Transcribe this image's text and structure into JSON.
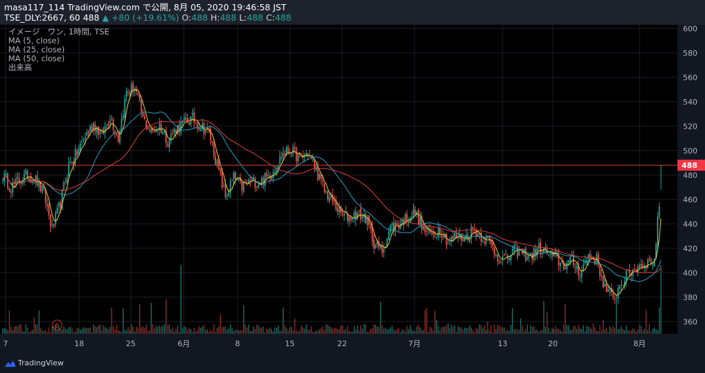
{
  "header": {
    "line1": "masa117_114 TradingView.com で公開, 8月 05, 2020 19:46:58 JST",
    "symbol": "TSE_DLY:2667, 60",
    "last": "488",
    "change_arrow": "▲",
    "change": "+80 (+19.61%)",
    "o_label": "O:",
    "o": "488",
    "h_label": "H:",
    "h": "488",
    "l_label": "L:",
    "l": "488",
    "c_label": "C:",
    "c": "488"
  },
  "legend": [
    "イメージ　ワン, 1時間, TSE",
    "MA (5, close)",
    "MA (25, close)",
    "MA (50, close)",
    "出来高"
  ],
  "footer": {
    "brand": "TradingView"
  },
  "colors": {
    "background": "#000000",
    "chrome": "#131722",
    "up": "#26a69a",
    "down": "#ef5350",
    "ma5": "#f0d432",
    "ma25": "#21a4c7",
    "ma50": "#e3413f",
    "price_line": "#e3413f",
    "price_label_bg": "#f23645"
  },
  "chart_data": {
    "type": "candlestick",
    "title": "イメージ　ワン, 1時間, TSE",
    "ylim": [
      350,
      603
    ],
    "y_ticks": [
      360,
      380,
      400,
      420,
      440,
      460,
      480,
      500,
      520,
      540,
      560,
      580,
      600
    ],
    "last_price": 488,
    "x_tick_labels": [
      "7",
      "18",
      "25",
      "6月",
      "8",
      "15",
      "22",
      "7月",
      "13",
      "20",
      "8月"
    ],
    "event_marker": "E",
    "approx_close_path": [
      [
        0,
        480
      ],
      [
        5,
        470
      ],
      [
        10,
        475
      ],
      [
        15,
        480
      ],
      [
        20,
        476
      ],
      [
        25,
        465
      ],
      [
        30,
        435
      ],
      [
        35,
        458
      ],
      [
        40,
        488
      ],
      [
        45,
        498
      ],
      [
        50,
        512
      ],
      [
        55,
        522
      ],
      [
        60,
        512
      ],
      [
        65,
        528
      ],
      [
        70,
        510
      ],
      [
        75,
        548
      ],
      [
        80,
        552
      ],
      [
        85,
        526
      ],
      [
        90,
        515
      ],
      [
        95,
        521
      ],
      [
        100,
        508
      ],
      [
        105,
        518
      ],
      [
        110,
        523
      ],
      [
        115,
        526
      ],
      [
        120,
        520
      ],
      [
        125,
        515
      ],
      [
        130,
        488
      ],
      [
        135,
        462
      ],
      [
        140,
        478
      ],
      [
        145,
        470
      ],
      [
        150,
        475
      ],
      [
        155,
        474
      ],
      [
        160,
        478
      ],
      [
        165,
        486
      ],
      [
        170,
        498
      ],
      [
        175,
        500
      ],
      [
        180,
        493
      ],
      [
        185,
        498
      ],
      [
        190,
        484
      ],
      [
        195,
        467
      ],
      [
        200,
        458
      ],
      [
        205,
        448
      ],
      [
        210,
        445
      ],
      [
        215,
        448
      ],
      [
        220,
        445
      ],
      [
        225,
        425
      ],
      [
        230,
        418
      ],
      [
        235,
        437
      ],
      [
        240,
        440
      ],
      [
        245,
        445
      ],
      [
        250,
        450
      ],
      [
        255,
        435
      ],
      [
        260,
        431
      ],
      [
        265,
        436
      ],
      [
        270,
        425
      ],
      [
        275,
        430
      ],
      [
        280,
        428
      ],
      [
        285,
        436
      ],
      [
        290,
        430
      ],
      [
        295,
        425
      ],
      [
        300,
        413
      ],
      [
        305,
        411
      ],
      [
        310,
        418
      ],
      [
        315,
        416
      ],
      [
        320,
        413
      ],
      [
        325,
        420
      ],
      [
        330,
        416
      ],
      [
        335,
        412
      ],
      [
        340,
        406
      ],
      [
        345,
        410
      ],
      [
        350,
        400
      ],
      [
        355,
        414
      ],
      [
        360,
        410
      ],
      [
        365,
        388
      ],
      [
        370,
        378
      ],
      [
        375,
        392
      ],
      [
        380,
        400
      ],
      [
        385,
        405
      ],
      [
        390,
        408
      ],
      [
        395,
        410
      ],
      [
        400,
        488
      ]
    ]
  }
}
